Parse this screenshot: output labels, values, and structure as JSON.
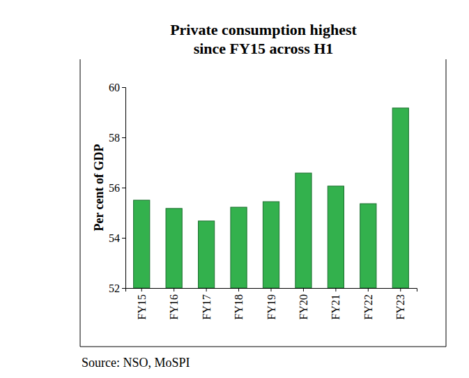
{
  "chart_data": {
    "type": "bar",
    "title": "Private consumption highest\nsince FY15 across H1",
    "y_label": "Per cent of GDP",
    "source": "Source: NSO, MoSPI",
    "categories": [
      "FY15",
      "FY16",
      "FY17",
      "FY18",
      "FY19",
      "FY20",
      "FY21",
      "FY22",
      "FY23"
    ],
    "values": [
      55.5,
      55.17,
      54.67,
      55.22,
      55.44,
      56.58,
      56.06,
      55.36,
      59.17
    ],
    "color": "#33b14d",
    "ylim": [
      52,
      60
    ],
    "yticks": [
      52,
      54,
      56,
      58,
      60
    ],
    "grid": false
  }
}
